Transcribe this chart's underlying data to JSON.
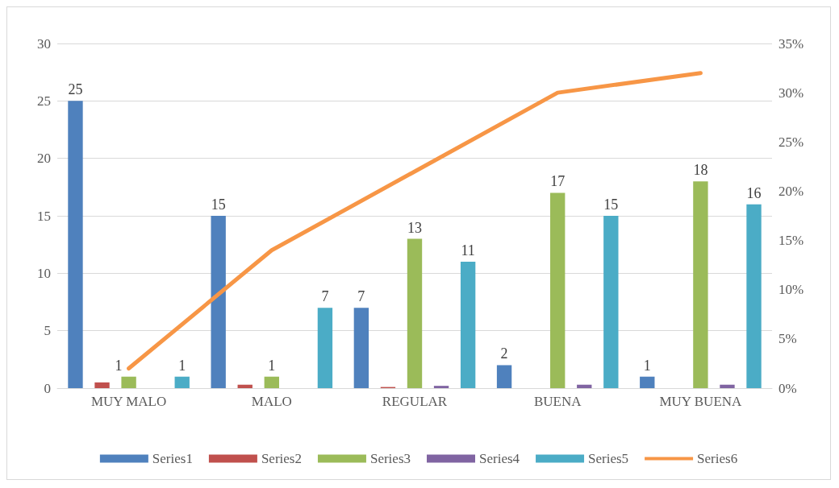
{
  "chart_data": {
    "type": "bar",
    "categories": [
      "MUY MALO",
      "MALO",
      "REGULAR",
      "BUENA",
      "MUY BUENA"
    ],
    "series": [
      {
        "name": "Series1",
        "color": "#4f81bd",
        "values": [
          25,
          15,
          7,
          2,
          1
        ],
        "value_labels": [
          "25",
          "15",
          "7",
          "2",
          "1"
        ]
      },
      {
        "name": "Series2",
        "color": "#c0504d",
        "values": [
          0.5,
          0.3,
          0.1,
          null,
          null
        ]
      },
      {
        "name": "Series3",
        "color": "#9bbb59",
        "values": [
          1,
          1,
          13,
          17,
          18
        ],
        "value_labels": [
          "1",
          "1",
          "13",
          "17",
          "18"
        ]
      },
      {
        "name": "Series4",
        "color": "#8064a2",
        "values": [
          null,
          null,
          0.2,
          0.3,
          0.3
        ]
      },
      {
        "name": "Series5",
        "color": "#4bacc6",
        "values": [
          1,
          7,
          11,
          15,
          16
        ],
        "value_labels": [
          "1",
          "7",
          "11",
          "15",
          "16"
        ]
      },
      {
        "name": "Series6",
        "color": "#f79646",
        "type": "line",
        "axis": "y2",
        "values": [
          2,
          14,
          22,
          30,
          32
        ]
      }
    ],
    "ylim": [
      0,
      30
    ],
    "yticks": [
      0,
      5,
      10,
      15,
      20,
      25,
      30
    ],
    "y2lim": [
      0,
      35
    ],
    "y2ticks": [
      {
        "value": 0,
        "label": "0%"
      },
      {
        "value": 5,
        "label": "5%"
      },
      {
        "value": 10,
        "label": "10%"
      },
      {
        "value": 15,
        "label": "15%"
      },
      {
        "value": 20,
        "label": "20%"
      },
      {
        "value": 25,
        "label": "25%"
      },
      {
        "value": 30,
        "label": "30%"
      },
      {
        "value": 35,
        "label": "35%"
      }
    ],
    "grid": "y",
    "legend": "bottom",
    "marker": "none",
    "line_style": "solid"
  }
}
